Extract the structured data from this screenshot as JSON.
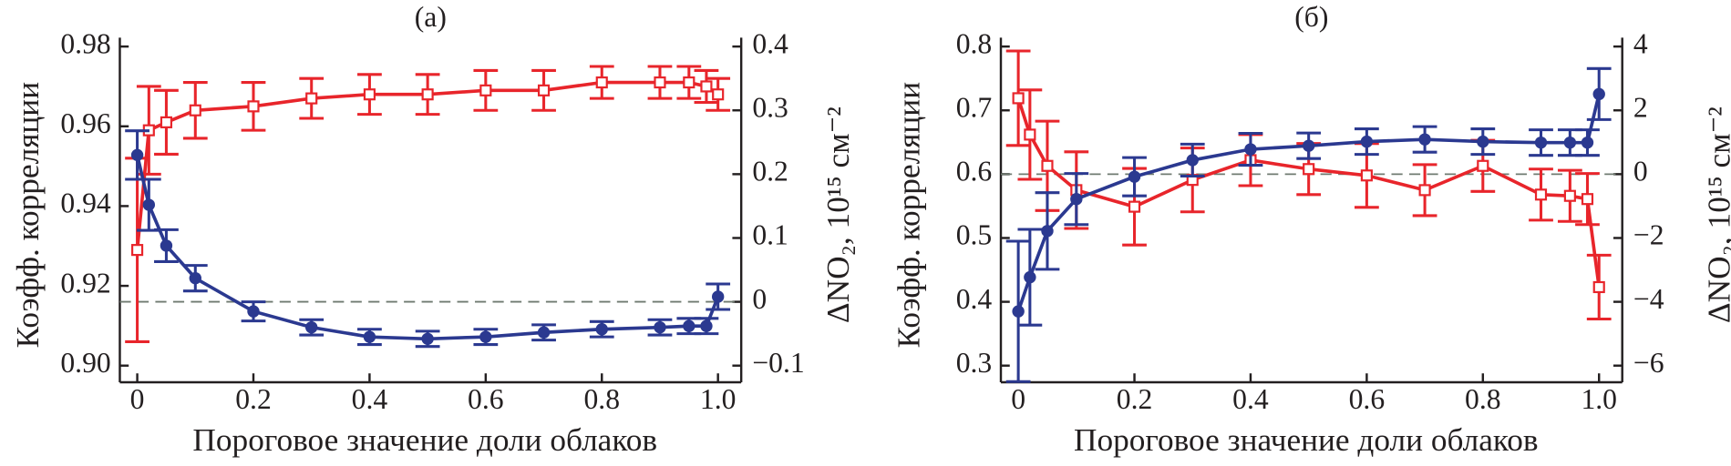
{
  "chart_data": [
    {
      "type": "line",
      "title": "(a)",
      "xlabel": "Пороговое значение доли облаков",
      "ylabel": "Коэфф. корреляции",
      "y2label": "ΔNO₂, 10¹⁵ см⁻²",
      "x": [
        0,
        0.02,
        0.05,
        0.1,
        0.2,
        0.3,
        0.4,
        0.5,
        0.6,
        0.7,
        0.8,
        0.9,
        0.95,
        0.98,
        1.0
      ],
      "xlim": [
        -0.03,
        1.04
      ],
      "xticks": [
        0,
        0.2,
        0.4,
        0.6,
        0.8,
        {
          "value": 1,
          "label": "1.0"
        }
      ],
      "ylim": [
        0.9,
        0.98
      ],
      "yticks": [
        {
          "value": 0.9,
          "label": "0.90"
        },
        0.92,
        0.94,
        0.96,
        0.98
      ],
      "y2lim": [
        -0.1,
        0.4
      ],
      "y2ticks": [
        {
          "value": -0.1,
          "label": "−0.1"
        },
        0,
        0.1,
        0.2,
        0.3,
        0.4
      ],
      "y2_reference_line": 0,
      "series": [
        {
          "color": "#e8252b",
          "marker": "square-open",
          "axis": "y",
          "values": [
            0.929,
            0.959,
            0.961,
            0.964,
            0.965,
            0.967,
            0.968,
            0.968,
            0.969,
            0.969,
            0.971,
            0.971,
            0.971,
            0.97,
            0.968
          ],
          "errors": [
            0.023,
            0.011,
            0.008,
            0.007,
            0.006,
            0.005,
            0.005,
            0.005,
            0.005,
            0.005,
            0.004,
            0.004,
            0.004,
            0.004,
            0.004
          ]
        },
        {
          "color": "#2b3990",
          "marker": "circle",
          "axis": "y2",
          "values": [
            0.23,
            0.152,
            0.088,
            0.037,
            -0.015,
            -0.04,
            -0.055,
            -0.058,
            -0.055,
            -0.048,
            -0.043,
            -0.04,
            -0.038,
            -0.038,
            0.008
          ],
          "errors": [
            0.038,
            0.04,
            0.025,
            0.02,
            0.015,
            0.012,
            0.012,
            0.012,
            0.012,
            0.012,
            0.012,
            0.012,
            0.012,
            0.012,
            0.02
          ]
        }
      ]
    },
    {
      "type": "line",
      "title": "(б)",
      "xlabel": "Пороговое значение доли облаков",
      "ylabel": "Коэфф. корреляции",
      "y2label": "ΔNO₂, 10¹⁵ см⁻²",
      "x": [
        0,
        0.02,
        0.05,
        0.1,
        0.2,
        0.3,
        0.4,
        0.5,
        0.6,
        0.7,
        0.8,
        0.9,
        0.95,
        0.98,
        1.0
      ],
      "xlim": [
        -0.03,
        1.04
      ],
      "xticks": [
        0,
        0.2,
        0.4,
        0.6,
        0.8,
        {
          "value": 1,
          "label": "1.0"
        }
      ],
      "ylim": [
        0.3,
        0.8
      ],
      "yticks": [
        0.3,
        0.4,
        0.5,
        0.6,
        0.7,
        0.8
      ],
      "y2lim": [
        -6,
        4
      ],
      "y2ticks": [
        {
          "value": -6,
          "label": "−6"
        },
        {
          "value": -4,
          "label": "−4"
        },
        {
          "value": -2,
          "label": "−2"
        },
        0,
        2,
        4
      ],
      "y2_reference_line": 0,
      "series": [
        {
          "color": "#e8252b",
          "marker": "square-open",
          "axis": "y",
          "values": [
            0.719,
            0.662,
            0.613,
            0.575,
            0.549,
            0.591,
            0.622,
            0.608,
            0.598,
            0.575,
            0.613,
            0.568,
            0.566,
            0.561,
            0.423
          ],
          "errors": [
            0.074,
            0.07,
            0.07,
            0.06,
            0.06,
            0.05,
            0.04,
            0.04,
            0.05,
            0.04,
            0.04,
            0.04,
            0.04,
            0.04,
            0.05
          ]
        },
        {
          "color": "#2b3990",
          "marker": "circle",
          "axis": "y2",
          "values": [
            -4.3,
            -3.23,
            -1.78,
            -0.78,
            -0.08,
            0.44,
            0.78,
            0.89,
            1.02,
            1.09,
            1.02,
            0.99,
            0.99,
            0.99,
            2.51
          ],
          "errors": [
            2.2,
            1.5,
            1.2,
            0.8,
            0.6,
            0.5,
            0.5,
            0.4,
            0.4,
            0.4,
            0.4,
            0.4,
            0.4,
            0.4,
            0.8
          ]
        }
      ]
    }
  ]
}
